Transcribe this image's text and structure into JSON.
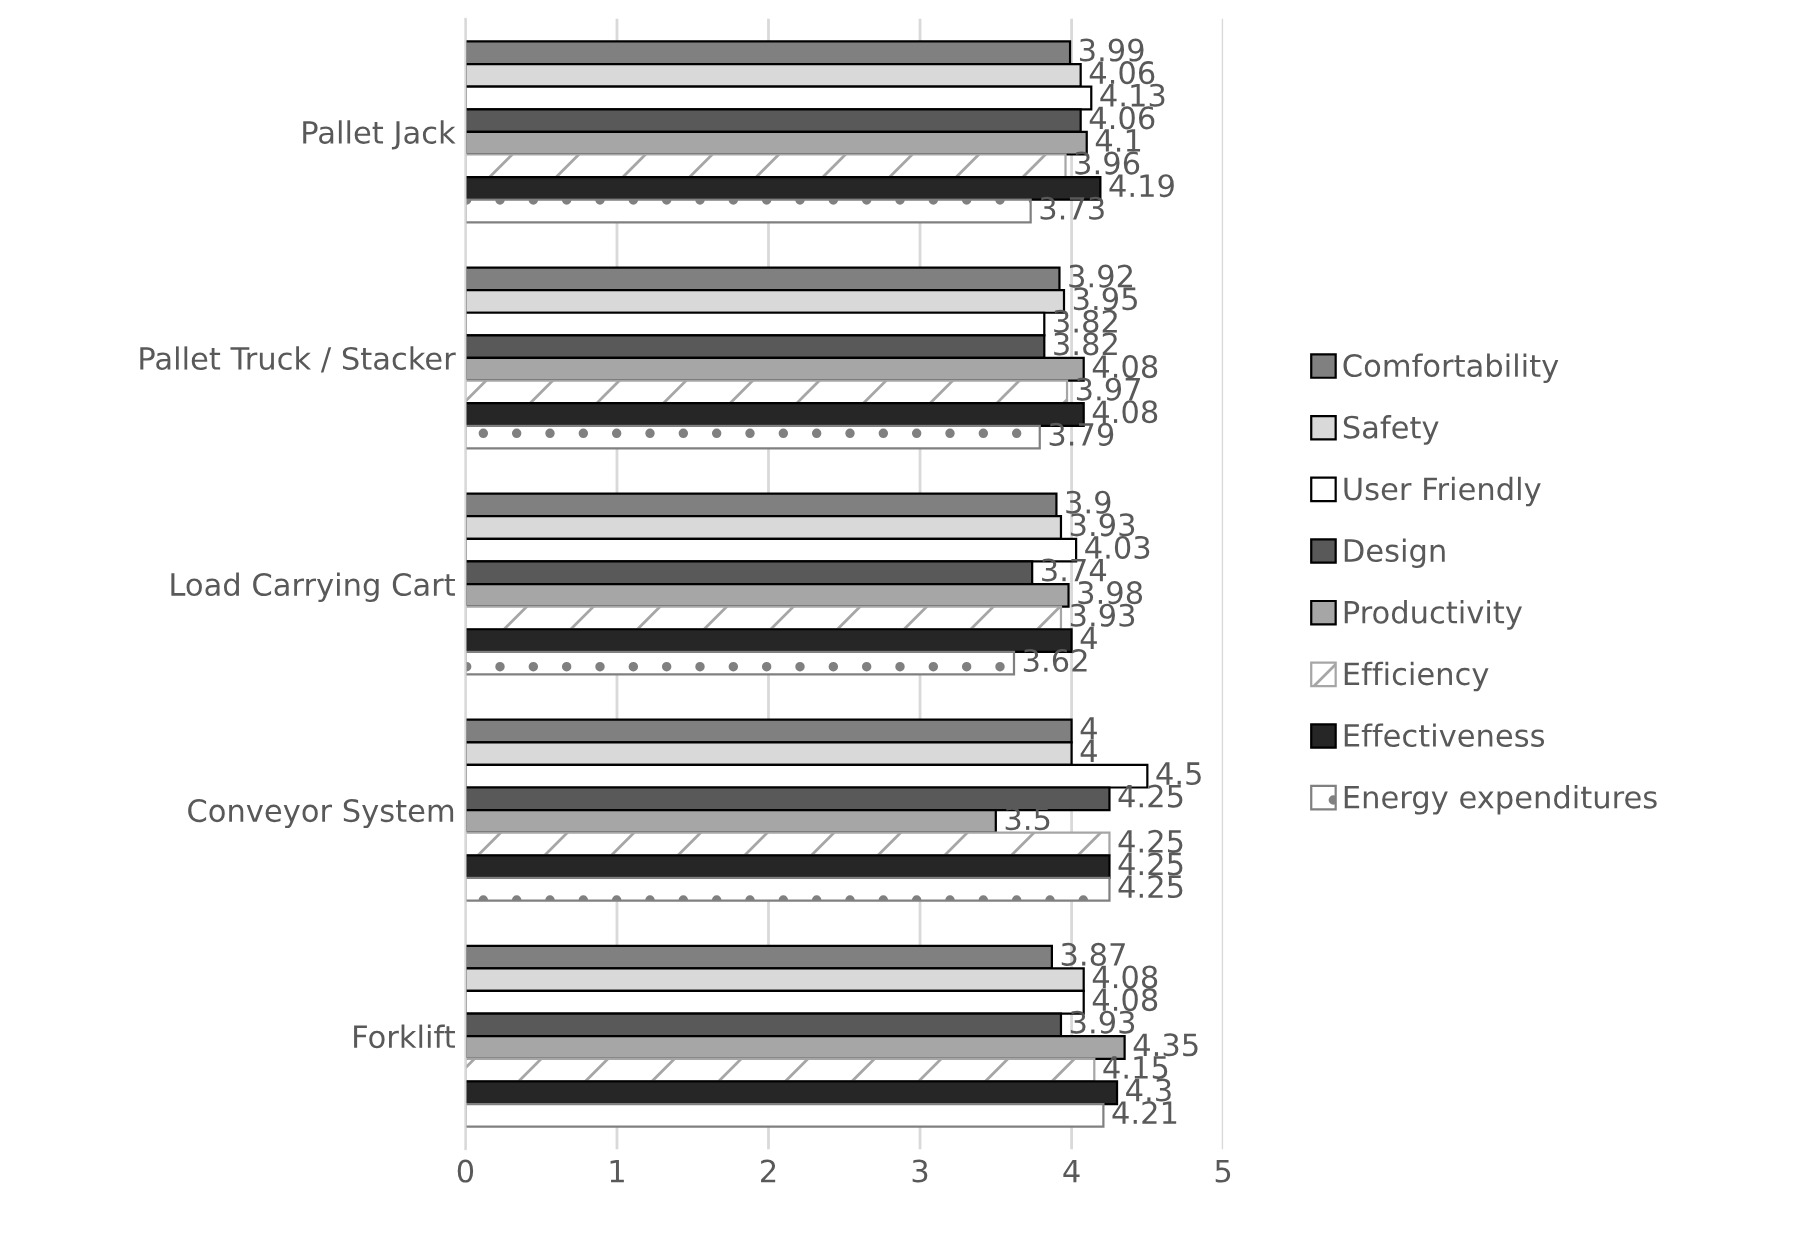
{
  "chart_data": {
    "type": "bar",
    "orientation": "horizontal",
    "categories": [
      "Pallet Jack",
      "Pallet Truck / Stacker",
      "Load Carrying Cart",
      "Conveyor System",
      "Forklift"
    ],
    "series": [
      {
        "name": "Comfortability",
        "color": "#808080",
        "values": [
          3.99,
          3.92,
          3.9,
          4,
          3.87
        ]
      },
      {
        "name": "Safety",
        "color": "#d9d9d9",
        "values": [
          4.06,
          3.95,
          3.93,
          4,
          4.08
        ]
      },
      {
        "name": "User Friendly",
        "color": "#ffffff",
        "values": [
          4.13,
          3.82,
          4.03,
          4.5,
          4.08
        ]
      },
      {
        "name": "Design",
        "color": "#595959",
        "values": [
          4.06,
          3.82,
          3.74,
          4.25,
          3.93
        ]
      },
      {
        "name": "Productivity",
        "color": "#a6a6a6",
        "values": [
          4.1,
          4.08,
          3.98,
          3.5,
          4.35
        ]
      },
      {
        "name": "Efficiency",
        "color": "#a6a6a6",
        "values": [
          3.96,
          3.97,
          3.93,
          4.25,
          4.15
        ]
      },
      {
        "name": "Effectiveness",
        "color": "#262626",
        "values": [
          4.19,
          4.08,
          4,
          4.25,
          4.3
        ]
      },
      {
        "name": "Energy expenditures",
        "color": "#808080",
        "values": [
          3.73,
          3.79,
          3.62,
          4.25,
          4.21
        ]
      }
    ],
    "xlim": [
      0,
      5
    ],
    "xticks": [
      0,
      1,
      2,
      3,
      4,
      5
    ],
    "grid": "x",
    "legend": "right",
    "data_labels": true
  }
}
